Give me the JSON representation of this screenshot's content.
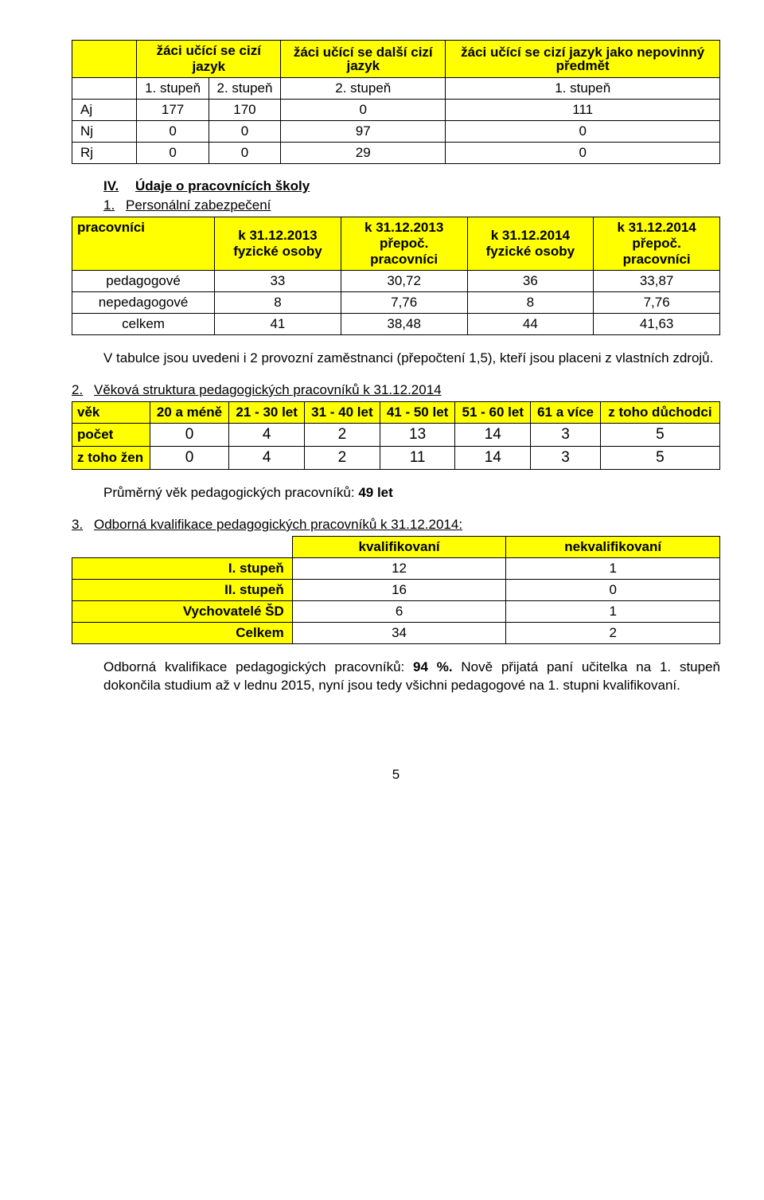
{
  "table1": {
    "headers": [
      "žáci učící se cizí jazyk",
      "žáci učící se další cizí jazyk",
      "žáci učící se cizí jazyk jako nepovinný předmět"
    ],
    "subheaders": [
      "1. stupeň",
      "2. stupeň",
      "2. stupeň",
      "1. stupeň"
    ],
    "rows": [
      {
        "label": "Aj",
        "v": [
          "177",
          "170",
          "0",
          "111"
        ]
      },
      {
        "label": "Nj",
        "v": [
          "0",
          "0",
          "97",
          "0"
        ]
      },
      {
        "label": "Rj",
        "v": [
          "0",
          "0",
          "29",
          "0"
        ]
      }
    ]
  },
  "sectionIV": {
    "num": "IV.",
    "title": "Údaje o pracovnících školy",
    "item1": {
      "num": "1.",
      "text": "Personální zabezpečení"
    }
  },
  "table2": {
    "corner": "pracovníci",
    "headers": [
      "k 31.12.2013 fyzické osoby",
      "k 31.12.2013 přepoč. pracovníci",
      "k 31.12.2014 fyzické osoby",
      "k 31.12.2014 přepoč. pracovníci"
    ],
    "rows": [
      {
        "label": "pedagogové",
        "v": [
          "33",
          "30,72",
          "36",
          "33,87"
        ]
      },
      {
        "label": "nepedagogové",
        "v": [
          "8",
          "7,76",
          "8",
          "7,76"
        ]
      },
      {
        "label": "celkem",
        "v": [
          "41",
          "38,48",
          "44",
          "41,63"
        ]
      }
    ]
  },
  "para1": "V tabulce jsou uvedeni i 2 provozní zaměstnanci (přepočtení 1,5), kteří jsou placeni z vlastních zdrojů.",
  "item2": {
    "num": "2.",
    "text": "Věková struktura pedagogických pracovníků k 31.12.2014"
  },
  "table3": {
    "headers": [
      "věk",
      "20 a méně",
      "21 - 30 let",
      "31 - 40 let",
      "41 - 50 let",
      "51 - 60 let",
      "61 a více",
      "z toho důchodci"
    ],
    "rows": [
      {
        "label": "počet",
        "v": [
          "0",
          "4",
          "2",
          "13",
          "14",
          "3",
          "5"
        ]
      },
      {
        "label": "z toho žen",
        "v": [
          "0",
          "4",
          "2",
          "11",
          "14",
          "3",
          "5"
        ]
      }
    ]
  },
  "avgAgeLabel": "Průměrný věk pedagogických pracovníků: ",
  "avgAgeValue": "49 let",
  "item3": {
    "num": "3.",
    "text": "Odborná kvalifikace pedagogických pracovníků k 31.12.2014:"
  },
  "table4": {
    "headers": [
      "kvalifikovaní",
      "nekvalifikovaní"
    ],
    "rows": [
      {
        "label": "I. stupeň",
        "v": [
          "12",
          "1"
        ]
      },
      {
        "label": "II. stupeň",
        "v": [
          "16",
          "0"
        ]
      },
      {
        "label": "Vychovatelé ŠD",
        "v": [
          "6",
          "1"
        ]
      },
      {
        "label": "Celkem",
        "v": [
          "34",
          "2"
        ]
      }
    ]
  },
  "para2a": "Odborná kvalifikace pedagogických pracovníků: ",
  "para2b": "94 %.",
  "para2c": " Nově přijatá paní učitelka na 1. stupeň dokončila studium až v lednu 2015, nyní jsou tedy všichni pedagogové na 1. stupni kvalifikovaní.",
  "pageNum": "5"
}
